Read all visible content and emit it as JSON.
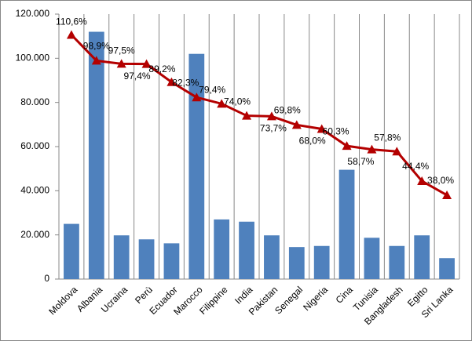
{
  "chart_data": {
    "type": "bar-line",
    "categories": [
      "Moldova",
      "Albania",
      "Ucraina",
      "Perù",
      "Ecuador",
      "Marocco",
      "Filippine",
      "India",
      "Pakistan",
      "Senegal",
      "Nigeria",
      "Cina",
      "Tunisia",
      "Bangladesh",
      "Egitto",
      "Sri Lanka"
    ],
    "series": [
      {
        "type": "bar",
        "color": "#4f81bd",
        "values": [
          25000,
          112000,
          19800,
          18000,
          16200,
          102000,
          27000,
          26000,
          19800,
          14500,
          15000,
          49500,
          18700,
          15000,
          19800,
          9500
        ]
      },
      {
        "type": "line",
        "axis": "y2",
        "color": "#b40000",
        "values": [
          110.6,
          98.9,
          97.5,
          97.4,
          89.2,
          82.3,
          79.4,
          74.0,
          73.7,
          69.8,
          68.0,
          60.3,
          58.7,
          57.8,
          44.4,
          38.0
        ],
        "value_labels": [
          "110,6%",
          "98,9%",
          "97,5%",
          "97,4%",
          "89,2%",
          "82,3%",
          "79,4%",
          "74,0%",
          "73,7%",
          "69,8%",
          "68,0%",
          "60,3%",
          "58,7%",
          "57,8%",
          "44,4%",
          "38,0%"
        ]
      }
    ],
    "ylim": [
      0,
      120000
    ],
    "yticks": [
      0,
      {
        "value": 20000,
        "label": "20.000"
      },
      {
        "value": 40000,
        "label": "40.000"
      },
      {
        "value": 60000,
        "label": "60.000"
      },
      {
        "value": 80000,
        "label": "80.000"
      },
      {
        "value": 100000,
        "label": "100.000"
      },
      {
        "value": 120000,
        "label": "120.000"
      }
    ],
    "y2lim": [
      0,
      120
    ],
    "grid": "vertical"
  }
}
